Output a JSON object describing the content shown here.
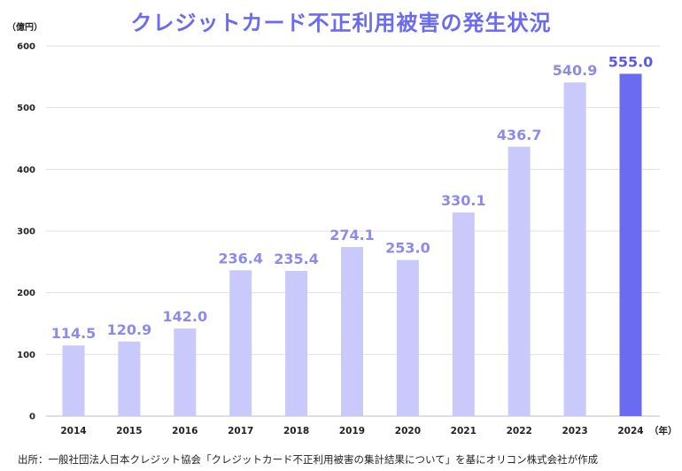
{
  "chart_data": {
    "type": "bar",
    "title": "クレジットカード不正利用被害の発生状況",
    "ylabel": "（億円）",
    "xlabel": "（年）",
    "ylim": [
      0,
      600
    ],
    "yticks": [
      0,
      100,
      200,
      300,
      400,
      500,
      600
    ],
    "categories": [
      "2014",
      "2015",
      "2016",
      "2017",
      "2018",
      "2019",
      "2020",
      "2021",
      "2022",
      "2023",
      "2024"
    ],
    "values": [
      114.5,
      120.9,
      142.0,
      236.4,
      235.4,
      274.1,
      253.0,
      330.1,
      436.7,
      540.9,
      555.0
    ],
    "value_labels": [
      "114.5",
      "120.9",
      "142.0",
      "236.4",
      "235.4",
      "274.1",
      "253.0",
      "330.1",
      "436.7",
      "540.9",
      "555.0"
    ],
    "highlight_index": 10,
    "grid": true,
    "colors": {
      "bar": "#c9c9fb",
      "highlight_bar": "#6b6bf2",
      "label": "#8c8ce8",
      "highlight_label": "#5a5ae6",
      "grid": "#e0e0e0"
    }
  },
  "source": "出所：一般社団法人日本クレジット協会「クレジットカード不正利用被害の集計結果について」を基にオリコン株式会社が作成"
}
